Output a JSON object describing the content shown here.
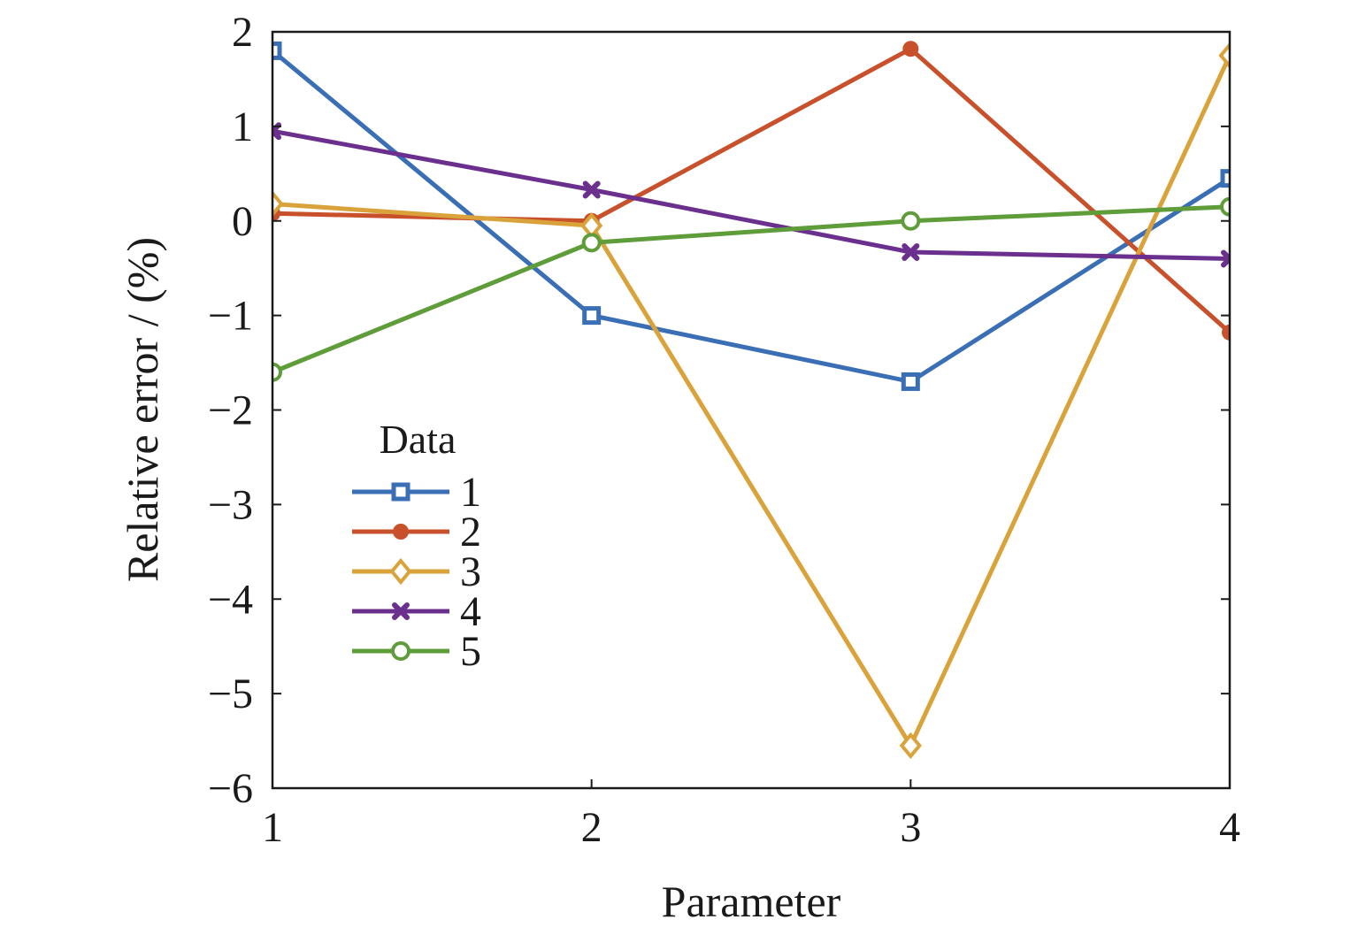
{
  "chart_data": {
    "type": "line",
    "title": "",
    "xlabel": "Parameter",
    "ylabel": "Relative error / (%)",
    "x": [
      1,
      2,
      3,
      4
    ],
    "xticks": [
      "1",
      "2",
      "3",
      "4"
    ],
    "yticks": [
      "2",
      "1",
      "0",
      "−1",
      "−2",
      "−3",
      "−4",
      "−5",
      "−6"
    ],
    "xlim": [
      1,
      4
    ],
    "ylim": [
      -6,
      2
    ],
    "grid": false,
    "legend": {
      "title": "Data",
      "position": "lower-left"
    },
    "series": [
      {
        "name": "1",
        "color": "#3a6eb5",
        "marker": "square",
        "values": [
          1.8,
          -1.0,
          -1.7,
          0.45
        ]
      },
      {
        "name": "2",
        "color": "#c8502a",
        "marker": "circle",
        "values": [
          0.08,
          0.0,
          1.82,
          -1.18
        ]
      },
      {
        "name": "3",
        "color": "#daa23a",
        "marker": "diamond",
        "values": [
          0.18,
          -0.05,
          -5.55,
          1.75
        ]
      },
      {
        "name": "4",
        "color": "#6b2f8e",
        "marker": "x",
        "values": [
          0.95,
          0.33,
          -0.33,
          -0.4
        ]
      },
      {
        "name": "5",
        "color": "#5f9c3a",
        "marker": "circle-open",
        "values": [
          -1.6,
          -0.23,
          0.0,
          0.15
        ]
      }
    ]
  }
}
